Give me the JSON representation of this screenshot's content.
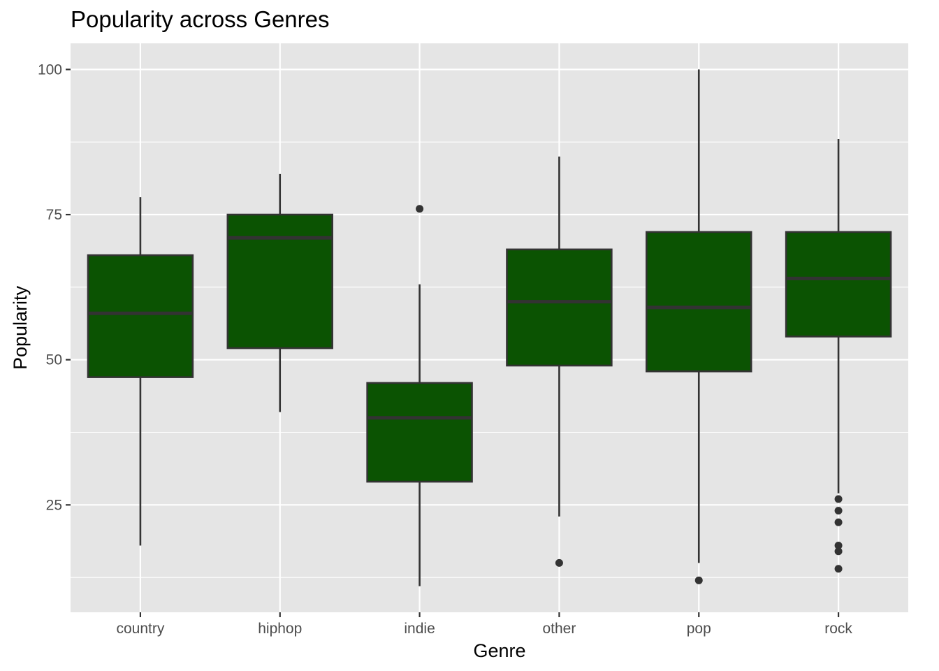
{
  "chart_data": {
    "type": "boxplot",
    "title": "Popularity across Genres",
    "xlabel": "Genre",
    "ylabel": "Popularity",
    "ylim": [
      6.5,
      104.5
    ],
    "yticks": [
      25,
      50,
      75,
      100
    ],
    "yminor": [
      12.5,
      37.5,
      62.5,
      87.5
    ],
    "grid": true,
    "colors": {
      "panel": "#e5e5e5",
      "grid": "#ffffff",
      "box_fill": "#0b5302",
      "box_line": "#333333",
      "tick_text": "#4d4d4d"
    },
    "categories": [
      "country",
      "hiphop",
      "indie",
      "other",
      "pop",
      "rock"
    ],
    "boxes": [
      {
        "category": "country",
        "q1": 47,
        "median": 58,
        "q3": 68,
        "whisker_low": 18,
        "whisker_high": 78,
        "outliers": []
      },
      {
        "category": "hiphop",
        "q1": 52,
        "median": 71,
        "q3": 75,
        "whisker_low": 41,
        "whisker_high": 82,
        "outliers": []
      },
      {
        "category": "indie",
        "q1": 29,
        "median": 40,
        "q3": 46,
        "whisker_low": 11,
        "whisker_high": 63,
        "outliers": [
          76
        ]
      },
      {
        "category": "other",
        "q1": 49,
        "median": 60,
        "q3": 69,
        "whisker_low": 23,
        "whisker_high": 85,
        "outliers": [
          15
        ]
      },
      {
        "category": "pop",
        "q1": 48,
        "median": 59,
        "q3": 72,
        "whisker_low": 15,
        "whisker_high": 100,
        "outliers": [
          12
        ]
      },
      {
        "category": "rock",
        "q1": 54,
        "median": 64,
        "q3": 72,
        "whisker_low": 27,
        "whisker_high": 88,
        "outliers": [
          26,
          24,
          22,
          18,
          17,
          14
        ]
      }
    ]
  }
}
